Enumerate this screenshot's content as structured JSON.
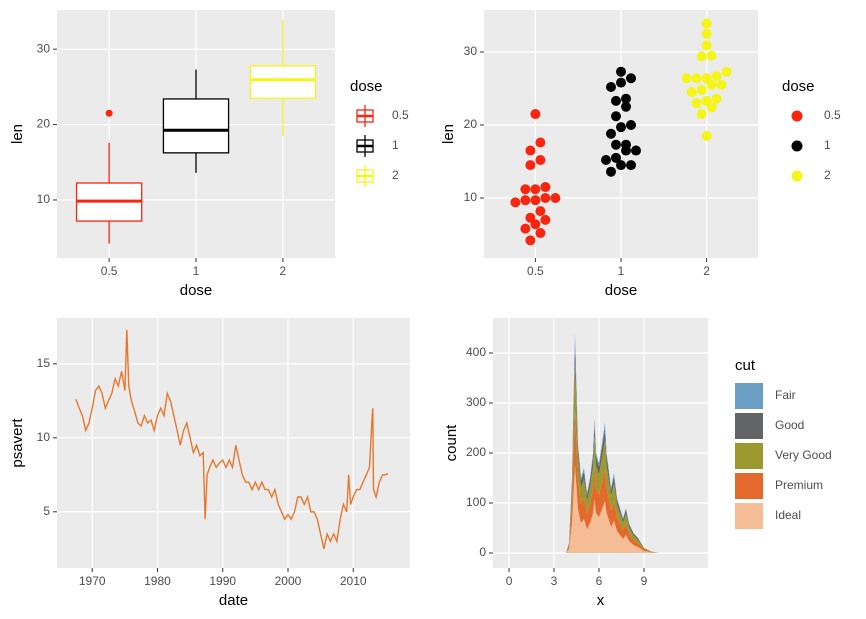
{
  "chart_data": [
    {
      "type": "box",
      "x_label": "dose",
      "y_label": "len",
      "legend_title": "dose",
      "categories": [
        "0.5",
        "1",
        "2"
      ],
      "colors": [
        "#f8250f",
        "#000000",
        "#f5f51a"
      ],
      "boxes": [
        {
          "min": 4.2,
          "q1": 7.2,
          "median": 9.85,
          "q3": 12.25,
          "max": 17.6,
          "outliers": [
            21.5
          ]
        },
        {
          "min": 13.6,
          "q1": 16.25,
          "median": 19.25,
          "q3": 23.4,
          "max": 27.3,
          "outliers": []
        },
        {
          "min": 18.5,
          "q1": 23.5,
          "median": 25.95,
          "q3": 27.8,
          "max": 33.9,
          "outliers": []
        }
      ],
      "ylim": [
        2.3,
        35.2
      ],
      "yticks": [
        10,
        20,
        30
      ],
      "grid": true
    },
    {
      "type": "dotplot",
      "x_label": "dose",
      "y_label": "len",
      "legend_title": "dose",
      "categories": [
        "0.5",
        "1",
        "2"
      ],
      "colors": [
        "#f8250f",
        "#000000",
        "#f5f51a"
      ],
      "values": [
        [
          4.2,
          11.5,
          7.3,
          5.8,
          6.4,
          10,
          11.2,
          11.2,
          5.2,
          7,
          15.2,
          21.5,
          17.6,
          9.7,
          14.5,
          10,
          8.2,
          9.4,
          16.5,
          9.7
        ],
        [
          16.5,
          16.5,
          15.2,
          17.3,
          22.5,
          17.3,
          13.6,
          14.5,
          18.8,
          15.5,
          19.7,
          23.3,
          23.6,
          26.4,
          20,
          25.2,
          25.8,
          21.2,
          14.5,
          27.3
        ],
        [
          23.6,
          18.5,
          33.9,
          25.5,
          26.4,
          32.5,
          26.7,
          21.5,
          23.3,
          29.5,
          25.5,
          26.4,
          22.4,
          24.5,
          24.8,
          30.9,
          26.4,
          27.3,
          29.4,
          23
        ]
      ],
      "ylim": [
        1.78,
        35.75
      ],
      "yticks": [
        10,
        20,
        30
      ],
      "grid": true
    },
    {
      "type": "line",
      "x_label": "date",
      "y_label": "psavert",
      "color": "#e8772e",
      "x": [
        1967.5,
        1968,
        1968.5,
        1969,
        1969.5,
        1970,
        1970.5,
        1971,
        1971.5,
        1972,
        1972.5,
        1973,
        1973.5,
        1974,
        1974.5,
        1975,
        1975.3,
        1975.6,
        1976,
        1976.5,
        1977,
        1977.5,
        1978,
        1978.5,
        1979,
        1979.5,
        1980,
        1980.5,
        1981,
        1981.5,
        1982,
        1982.5,
        1983,
        1983.5,
        1984,
        1984.5,
        1985,
        1985.5,
        1986,
        1986.5,
        1987,
        1987.3,
        1987.6,
        1988,
        1988.5,
        1989,
        1989.5,
        1990,
        1990.5,
        1991,
        1991.5,
        1992,
        1992.5,
        1993,
        1993.5,
        1994,
        1994.5,
        1995,
        1995.5,
        1996,
        1996.5,
        1997,
        1997.5,
        1998,
        1998.5,
        1999,
        1999.5,
        2000,
        2000.5,
        2001,
        2001.5,
        2002,
        2002.5,
        2003,
        2003.5,
        2004,
        2004.5,
        2005,
        2005.5,
        2006,
        2006.5,
        2007,
        2007.5,
        2008,
        2008.5,
        2009,
        2009.3,
        2009.6,
        2010,
        2010.5,
        2011,
        2011.5,
        2012,
        2012.5,
        2012.9,
        2013,
        2013.1,
        2013.5,
        2014,
        2014.5,
        2015,
        2015.3
      ],
      "values": [
        12.6,
        12.0,
        11.5,
        10.5,
        11.0,
        12.0,
        13.2,
        13.5,
        13.0,
        12.0,
        12.5,
        13.0,
        14.0,
        13.5,
        14.5,
        13.2,
        17.3,
        13.5,
        12.5,
        11.8,
        11.0,
        10.8,
        11.5,
        11.0,
        11.2,
        10.5,
        11.5,
        12.0,
        11.5,
        13.0,
        12.5,
        11.5,
        10.5,
        9.5,
        10.5,
        11.0,
        10.0,
        9.0,
        9.5,
        8.8,
        9.0,
        4.5,
        7.5,
        8.0,
        8.5,
        8.0,
        8.3,
        8.5,
        8.0,
        8.5,
        8.0,
        9.5,
        8.5,
        7.5,
        7.0,
        7.0,
        6.5,
        7.0,
        6.5,
        7.0,
        6.5,
        6.5,
        6.0,
        6.5,
        5.5,
        5.0,
        4.5,
        4.8,
        4.5,
        5.0,
        6.0,
        6.0,
        5.5,
        6.0,
        5.0,
        5.0,
        4.5,
        3.5,
        2.5,
        3.5,
        3.0,
        3.5,
        3.0,
        4.5,
        5.5,
        5.0,
        7.5,
        5.5,
        6.0,
        6.5,
        6.5,
        7.0,
        7.5,
        8.0,
        11.5,
        12.0,
        6.5,
        6.0,
        7.0,
        7.5,
        7.5,
        7.6
      ],
      "xlim": [
        1964.6,
        2018.7
      ],
      "xticks": [
        1970,
        1980,
        1990,
        2000,
        2010
      ],
      "ylim": [
        1.2,
        18.1
      ],
      "yticks": [
        5,
        10,
        15
      ],
      "grid": true
    },
    {
      "type": "area",
      "x_label": "x",
      "y_label": "count",
      "legend_title": "cut",
      "x": [
        3.8,
        4.0,
        4.2,
        4.3,
        4.4,
        4.5,
        4.6,
        4.8,
        5.0,
        5.2,
        5.4,
        5.6,
        5.7,
        5.8,
        6.0,
        6.2,
        6.4,
        6.5,
        6.6,
        6.8,
        7.0,
        7.2,
        7.4,
        7.6,
        7.8,
        8.0,
        8.3,
        8.6,
        9.0,
        9.5,
        10.0
      ],
      "series": [
        {
          "name": "Fair",
          "color": "#6a9ec5",
          "values": [
            0,
            1,
            5,
            12,
            17,
            12,
            9,
            5,
            7,
            5,
            5,
            8,
            11,
            8,
            7,
            9,
            11,
            8,
            7,
            4,
            7,
            4,
            3,
            3,
            3,
            3,
            1,
            0,
            0,
            0,
            0
          ]
        },
        {
          "name": "Good",
          "color": "#636466",
          "values": [
            0,
            2,
            14,
            27,
            40,
            30,
            20,
            14,
            15,
            11,
            14,
            18,
            24,
            18,
            16,
            20,
            23,
            18,
            16,
            12,
            14,
            10,
            8,
            6,
            8,
            5,
            4,
            3,
            1,
            0,
            0
          ]
        },
        {
          "name": "Very Good",
          "color": "#9c9a2f",
          "values": [
            0,
            4,
            33,
            66,
            97,
            73,
            48,
            33,
            37,
            26,
            33,
            44,
            59,
            44,
            40,
            48,
            57,
            44,
            40,
            29,
            35,
            24,
            20,
            15,
            20,
            13,
            9,
            7,
            2,
            1,
            0
          ]
        },
        {
          "name": "Premium",
          "color": "#e36a2b",
          "values": [
            0,
            5,
            38,
            75,
            110,
            83,
            55,
            38,
            43,
            30,
            38,
            50,
            68,
            50,
            45,
            55,
            65,
            50,
            45,
            33,
            40,
            28,
            23,
            18,
            23,
            15,
            10,
            8,
            3,
            1,
            0
          ]
        },
        {
          "name": "Ideal",
          "color": "#f5bd95",
          "values": [
            0,
            8,
            60,
            120,
            176,
            132,
            88,
            60,
            68,
            48,
            60,
            80,
            108,
            80,
            72,
            88,
            104,
            80,
            72,
            52,
            64,
            44,
            36,
            28,
            36,
            24,
            16,
            12,
            4,
            1,
            0
          ]
        }
      ],
      "xlim": [
        -1.07,
        13.27
      ],
      "xticks": [
        0,
        3,
        6,
        9
      ],
      "ylim": [
        -30,
        470
      ],
      "yticks": [
        0,
        100,
        200,
        300,
        400
      ],
      "grid": true
    }
  ]
}
